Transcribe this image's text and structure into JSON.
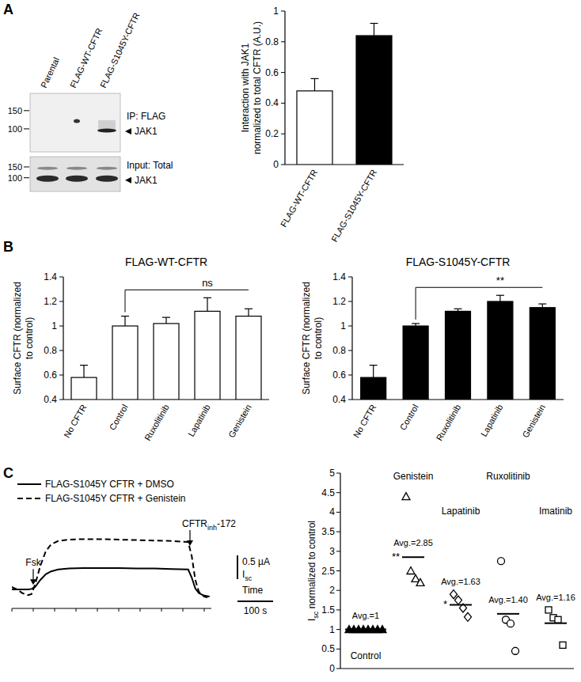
{
  "panel_labels": [
    "A",
    "B",
    "C"
  ],
  "blot": {
    "lanes": [
      "Parental",
      "FLAG-WT-CFTR",
      "FLAG-S1045Y-CFTR"
    ],
    "panels": [
      {
        "markers": [
          150,
          100
        ],
        "labels": [
          "IP: FLAG",
          "JAK1"
        ]
      },
      {
        "markers": [
          150,
          100
        ],
        "labels": [
          "Input: Total",
          "JAK1"
        ]
      }
    ]
  },
  "chart_data": [
    {
      "type": "bar",
      "y_label": [
        "Interaction with JAK1",
        "normalized to total CFTR (A.U.)"
      ],
      "categories": [
        "FLAG-WT-CFTR",
        "FLAG-S1045Y-CFTR"
      ],
      "values": [
        0.48,
        0.84
      ],
      "errors": [
        0.08,
        0.08
      ],
      "colors": [
        "#ffffff",
        "#000000"
      ],
      "ylim": [
        0,
        1
      ],
      "yticks": [
        0,
        0.2,
        0.4,
        0.6,
        0.8,
        1
      ]
    },
    {
      "type": "bar",
      "title": "FLAG-WT-CFTR",
      "y_label": [
        "Surface CFTR (normalized",
        "to control)"
      ],
      "categories": [
        "No CFTR",
        "Control",
        "Ruxolitinib",
        "Lapatinib",
        "Genistein"
      ],
      "values": [
        0.58,
        1.0,
        1.02,
        1.12,
        1.08
      ],
      "errors": [
        0.1,
        0.08,
        0.05,
        0.11,
        0.06
      ],
      "color": "#ffffff",
      "ylim": [
        0.4,
        1.4
      ],
      "yticks": [
        0.4,
        0.6,
        0.8,
        1,
        1.2,
        1.4
      ],
      "annotations": [
        {
          "text": "ns",
          "from": 1,
          "to": 4
        }
      ]
    },
    {
      "type": "bar",
      "title": "FLAG-S1045Y-CFTR",
      "y_label": [
        "Surface CFTR (normalized",
        "to control)"
      ],
      "categories": [
        "No CFTR",
        "Control",
        "Ruxolitinib",
        "Lapatinib",
        "Genistein"
      ],
      "values": [
        0.58,
        1.0,
        1.12,
        1.2,
        1.15
      ],
      "errors": [
        0.1,
        0.02,
        0.02,
        0.05,
        0.03
      ],
      "color": "#000000",
      "ylim": [
        0.4,
        1.4
      ],
      "yticks": [
        0.4,
        0.6,
        0.8,
        1,
        1.2,
        1.4
      ],
      "annotations": [
        {
          "text": "**",
          "from": 1,
          "to": 4
        }
      ]
    },
    {
      "type": "line",
      "x": [
        0,
        15,
        30,
        45,
        55,
        65,
        80,
        95,
        110,
        130,
        160,
        200,
        250,
        300,
        350,
        400,
        450,
        495,
        505,
        515,
        525,
        540,
        555
      ],
      "series": [
        {
          "name": "FLAG-S1045Y CFTR + DMSO",
          "color": "#000000",
          "line_style": "solid",
          "values": [
            0,
            0,
            0,
            0,
            0.01,
            0.05,
            0.2,
            0.32,
            0.38,
            0.42,
            0.44,
            0.45,
            0.45,
            0.45,
            0.44,
            0.44,
            0.43,
            0.42,
            0.25,
            0.02,
            -0.08,
            -0.13,
            -0.15
          ]
        },
        {
          "name": "FLAG-S1045Y CFTR + Genistein",
          "color": "#000000",
          "line_style": "dashed",
          "values": [
            0.05,
            0,
            -0.08,
            -0.12,
            -0.1,
            0.1,
            0.5,
            0.8,
            0.95,
            1.02,
            1.05,
            1.06,
            1.06,
            1.05,
            1.04,
            1.03,
            1.02,
            1.0,
            0.7,
            0.2,
            -0.05,
            -0.15,
            -0.18
          ]
        }
      ],
      "xlim": [
        0,
        560
      ],
      "ylim": [
        -0.4,
        1.5
      ],
      "xticks": [
        0,
        60,
        120,
        180,
        240,
        300,
        360,
        420,
        480,
        540
      ],
      "tick_labels": false,
      "legend": "top-left",
      "annotations": [
        {
          "text": [
            "Fsk"
          ],
          "x": 60
        },
        {
          "text": [
            "CFTR",
            "inh",
            "-172"
          ],
          "x": 500
        }
      ],
      "scale_bar": {
        "y": 0.5,
        "y_label": "0.5 µA",
        "y_name": [
          "I",
          "sc"
        ],
        "x": 100,
        "x_label": "100 s",
        "x_name": "Time"
      }
    },
    {
      "type": "scatter",
      "y_label": [
        "I",
        "sc",
        " normalized to control"
      ],
      "ylim": [
        0,
        5
      ],
      "yticks": [
        0,
        0.5,
        1,
        1.5,
        2,
        2.5,
        3,
        3.5,
        4,
        4.5,
        5
      ],
      "tick_labels": "y",
      "series": [
        {
          "name": "Control",
          "color": "#000000",
          "marker": "triangle-filled",
          "values": [
            1,
            1,
            1,
            1,
            1,
            1,
            1,
            1
          ],
          "mean": 1,
          "mean_label": "Avg.=1"
        },
        {
          "name": "Genistein",
          "color": "#000000",
          "marker": "triangle-open",
          "values": [
            4.4,
            2.5,
            2.3,
            2.2
          ],
          "mean": 2.85,
          "mean_label": "Avg.=2.85",
          "significance": "**"
        },
        {
          "name": "Lapatinib",
          "color": "#000000",
          "marker": "diamond-open",
          "values": [
            1.9,
            1.75,
            1.55,
            1.32
          ],
          "mean": 1.63,
          "mean_label": "Avg.=1.63",
          "significance": "*"
        },
        {
          "name": "Ruxolitinib",
          "color": "#000000",
          "marker": "circle-open",
          "values": [
            2.75,
            1.25,
            1.15,
            0.45
          ],
          "mean": 1.4,
          "mean_label": "Avg.=1.40"
        },
        {
          "name": "Imatinib",
          "color": "#000000",
          "marker": "square-open",
          "values": [
            1.5,
            1.3,
            1.25,
            0.6
          ],
          "mean": 1.16,
          "mean_label": "Avg.=1.16"
        }
      ]
    }
  ]
}
